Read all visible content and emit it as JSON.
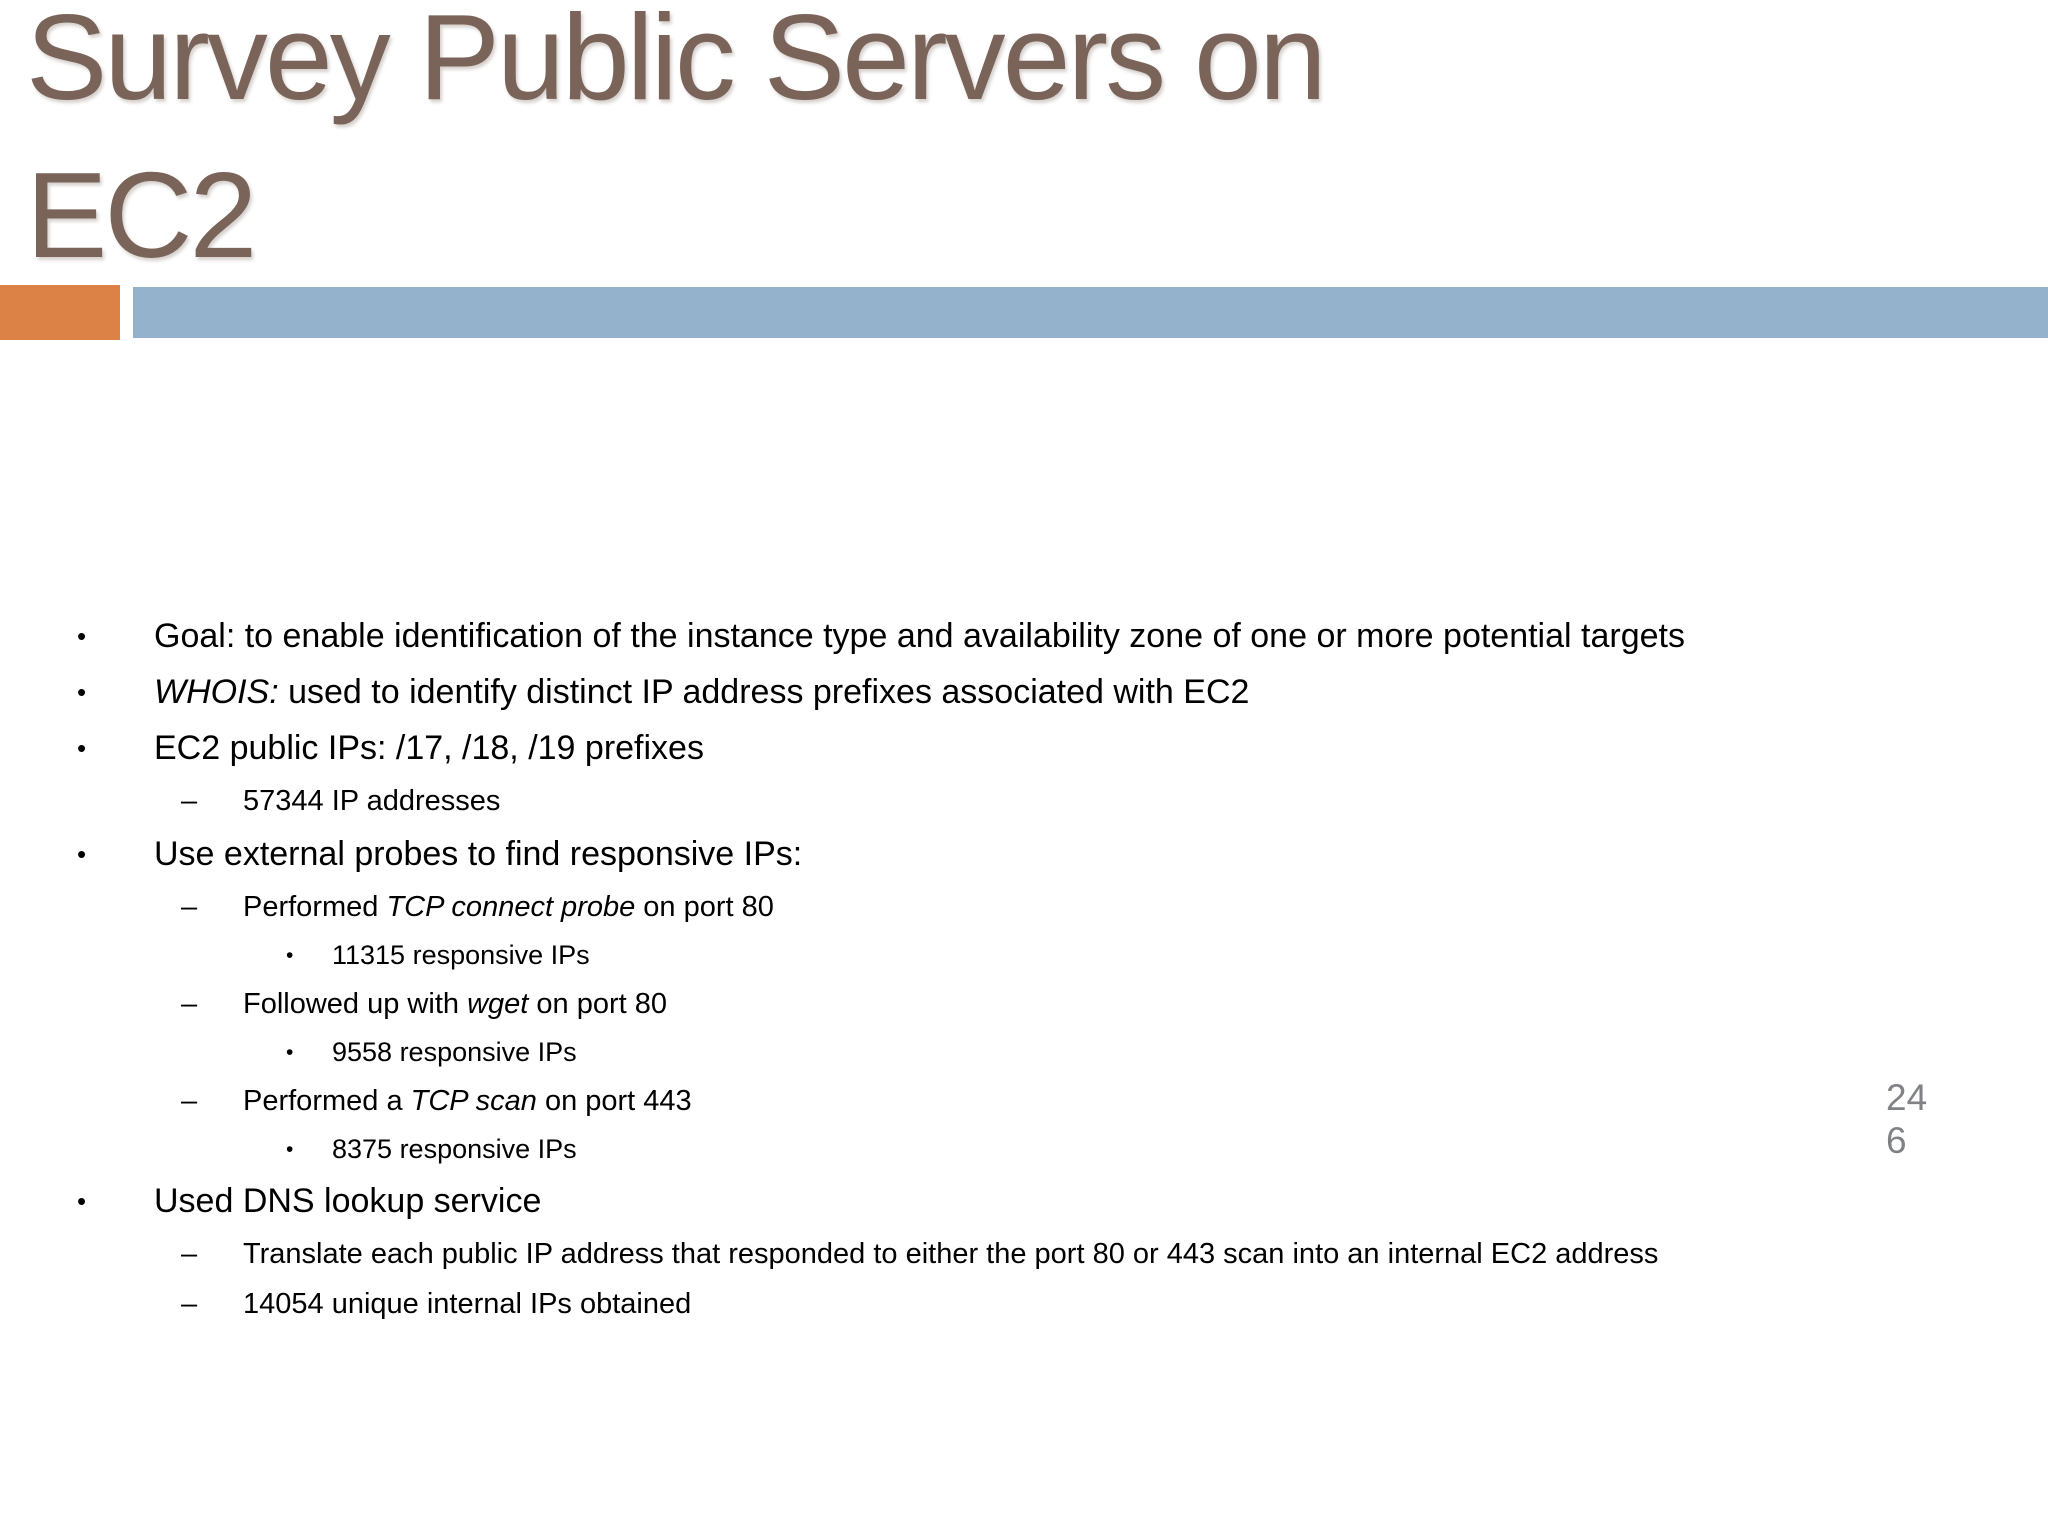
{
  "slide": {
    "title": "Survey Public Servers on EC2",
    "title_lines": [
      "Survey Public Servers on",
      "EC2"
    ],
    "page_number": "246",
    "page_number_lines": [
      "24",
      "6"
    ]
  },
  "theme": {
    "title_color": "#7a6459",
    "accent_orange": "#dc8246",
    "accent_blue": "#95b2cc",
    "page_number_color": "#808285",
    "body_text_color": "#000000"
  },
  "markers": {
    "level1": "•",
    "level2": "–",
    "level3": "•"
  },
  "bullets": [
    {
      "level": 1,
      "runs": [
        {
          "t": "Goal: to enable identification of the instance type and availability zone of one or more potential targets"
        }
      ]
    },
    {
      "level": 1,
      "runs": [
        {
          "t": "WHOIS:",
          "i": true
        },
        {
          "t": " used to identify distinct IP address prefixes associated with EC2"
        }
      ]
    },
    {
      "level": 1,
      "runs": [
        {
          "t": "EC2 public IPs: /17, /18, /19 prefixes"
        }
      ]
    },
    {
      "level": 2,
      "runs": [
        {
          "t": "57344 IP addresses"
        }
      ]
    },
    {
      "level": 1,
      "runs": [
        {
          "t": "Use external probes to find responsive IPs:"
        }
      ]
    },
    {
      "level": 2,
      "runs": [
        {
          "t": "Performed "
        },
        {
          "t": "TCP connect probe",
          "i": true
        },
        {
          "t": " on port 80"
        }
      ]
    },
    {
      "level": 3,
      "runs": [
        {
          "t": "11315 responsive IPs"
        }
      ]
    },
    {
      "level": 2,
      "runs": [
        {
          "t": "Followed up with "
        },
        {
          "t": "wget",
          "i": true
        },
        {
          "t": " on port 80"
        }
      ]
    },
    {
      "level": 3,
      "runs": [
        {
          "t": "9558 responsive IPs"
        }
      ]
    },
    {
      "level": 2,
      "runs": [
        {
          "t": "Performed a "
        },
        {
          "t": "TCP scan",
          "i": true
        },
        {
          "t": " on port 443"
        }
      ]
    },
    {
      "level": 3,
      "runs": [
        {
          "t": "8375 responsive IPs"
        }
      ]
    },
    {
      "level": 1,
      "runs": [
        {
          "t": "Used DNS lookup service"
        }
      ]
    },
    {
      "level": 2,
      "runs": [
        {
          "t": "Translate each public IP address that responded to either the port 80 or 443 scan into an internal EC2 address"
        }
      ]
    },
    {
      "level": 2,
      "runs": [
        {
          "t": "14054 unique internal IPs obtained"
        }
      ]
    }
  ]
}
